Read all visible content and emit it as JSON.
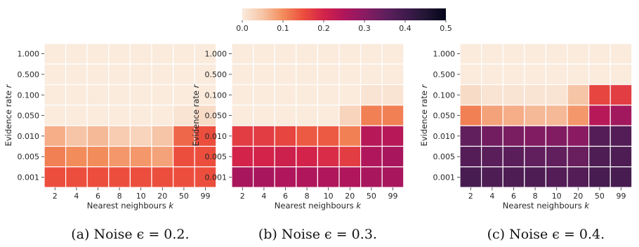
{
  "colorbar": {
    "min": 0.0,
    "max": 0.5,
    "tick_values": [
      0.0,
      0.1,
      0.2,
      0.3,
      0.4,
      0.5
    ],
    "tick_labels": [
      "0.0",
      "0.1",
      "0.2",
      "0.3",
      "0.4",
      "0.5"
    ],
    "stops": [
      {
        "v": 0.0,
        "color": "#faebdd"
      },
      {
        "v": 0.05,
        "color": "#f6c4a6"
      },
      {
        "v": 0.1,
        "color": "#f38c5b"
      },
      {
        "v": 0.15,
        "color": "#ec4e3e"
      },
      {
        "v": 0.2,
        "color": "#d3234a"
      },
      {
        "v": 0.25,
        "color": "#b0165b"
      },
      {
        "v": 0.3,
        "color": "#8a1b63"
      },
      {
        "v": 0.35,
        "color": "#611f5d"
      },
      {
        "v": 0.4,
        "color": "#401b4e"
      },
      {
        "v": 0.45,
        "color": "#231634"
      },
      {
        "v": 0.5,
        "color": "#03051a"
      }
    ]
  },
  "chart_data": [
    {
      "type": "heatmap",
      "caption": "(a) Noise ϵ = 0.2.",
      "xlabel": "Nearest neighbours k",
      "ylabel": "Evidence rate r",
      "x_categories": [
        "2",
        "4",
        "6",
        "8",
        "10",
        "20",
        "50",
        "99"
      ],
      "y_categories": [
        "1.000",
        "0.500",
        "0.100",
        "0.050",
        "0.010",
        "0.005",
        "0.001"
      ],
      "values": [
        [
          0.0,
          0.0,
          0.0,
          0.0,
          0.0,
          0.0,
          0.0,
          0.0
        ],
        [
          0.0,
          0.0,
          0.0,
          0.0,
          0.0,
          0.0,
          0.0,
          0.0
        ],
        [
          0.0,
          0.0,
          0.0,
          0.0,
          0.0,
          0.0,
          0.0,
          0.0
        ],
        [
          0.0,
          0.0,
          0.0,
          0.0,
          0.0,
          0.0,
          0.01,
          0.02
        ],
        [
          0.07,
          0.05,
          0.06,
          0.04,
          0.03,
          0.05,
          0.13,
          0.15
        ],
        [
          0.11,
          0.1,
          0.1,
          0.09,
          0.09,
          0.08,
          0.15,
          0.15
        ],
        [
          0.15,
          0.15,
          0.15,
          0.15,
          0.15,
          0.15,
          0.15,
          0.15
        ]
      ]
    },
    {
      "type": "heatmap",
      "caption": "(b) Noise ϵ = 0.3.",
      "xlabel": "Nearest neighbours k",
      "ylabel": "Evidence rate r",
      "x_categories": [
        "2",
        "4",
        "6",
        "8",
        "10",
        "20",
        "50",
        "99"
      ],
      "y_categories": [
        "1.000",
        "0.500",
        "0.100",
        "0.050",
        "0.010",
        "0.005",
        "0.001"
      ],
      "values": [
        [
          0.0,
          0.0,
          0.0,
          0.0,
          0.0,
          0.0,
          0.0,
          0.0
        ],
        [
          0.0,
          0.0,
          0.0,
          0.0,
          0.0,
          0.0,
          0.0,
          0.0
        ],
        [
          0.0,
          0.0,
          0.0,
          0.0,
          0.0,
          0.0,
          0.01,
          0.01
        ],
        [
          0.0,
          0.0,
          0.0,
          0.0,
          0.0,
          0.03,
          0.11,
          0.11
        ],
        [
          0.17,
          0.17,
          0.16,
          0.14,
          0.14,
          0.11,
          0.24,
          0.24
        ],
        [
          0.2,
          0.2,
          0.21,
          0.2,
          0.19,
          0.17,
          0.25,
          0.26
        ],
        [
          0.26,
          0.26,
          0.25,
          0.25,
          0.25,
          0.25,
          0.26,
          0.26
        ]
      ]
    },
    {
      "type": "heatmap",
      "caption": "(c) Noise ϵ = 0.4.",
      "xlabel": "Nearest neighbours k",
      "ylabel": "Evidence rate r",
      "x_categories": [
        "2",
        "4",
        "6",
        "8",
        "10",
        "20",
        "50",
        "99"
      ],
      "y_categories": [
        "1.000",
        "0.500",
        "0.100",
        "0.050",
        "0.010",
        "0.005",
        "0.001"
      ],
      "values": [
        [
          0.0,
          0.0,
          0.0,
          0.0,
          0.0,
          0.0,
          0.0,
          0.0
        ],
        [
          0.0,
          0.0,
          0.0,
          0.0,
          0.0,
          0.0,
          0.0,
          0.0
        ],
        [
          0.02,
          0.01,
          0.01,
          0.01,
          0.01,
          0.05,
          0.16,
          0.17
        ],
        [
          0.11,
          0.08,
          0.07,
          0.06,
          0.06,
          0.09,
          0.24,
          0.27
        ],
        [
          0.35,
          0.33,
          0.32,
          0.31,
          0.31,
          0.3,
          0.37,
          0.37
        ],
        [
          0.37,
          0.36,
          0.36,
          0.35,
          0.35,
          0.34,
          0.38,
          0.38
        ],
        [
          0.39,
          0.38,
          0.38,
          0.38,
          0.37,
          0.37,
          0.39,
          0.39
        ]
      ]
    }
  ]
}
